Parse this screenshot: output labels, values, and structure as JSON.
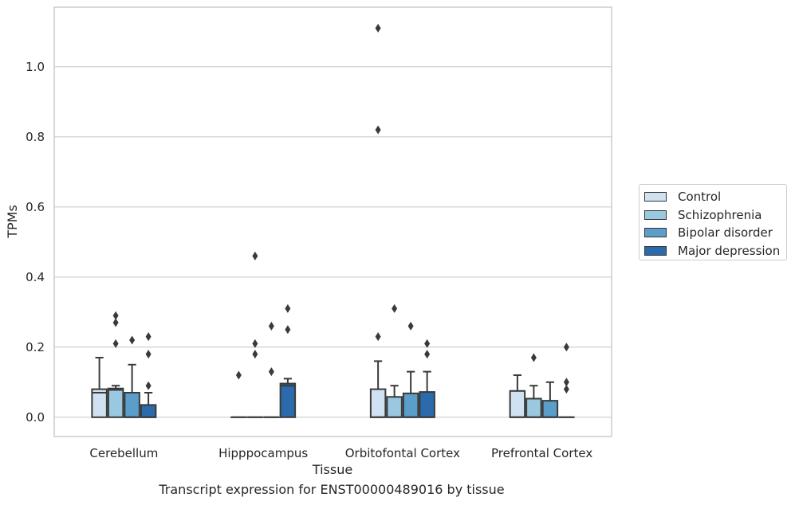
{
  "caption": "Transcript expression for ENST00000489016 by tissue",
  "chart_data": {
    "type": "box",
    "xlabel": "Tissue",
    "ylabel": "TPMs",
    "ylim": [
      -0.055,
      1.17
    ],
    "yticks": [
      0.0,
      0.2,
      0.4,
      0.6,
      0.8,
      1.0
    ],
    "ytick_labels": [
      "0.0",
      "0.2",
      "0.4",
      "0.6",
      "0.8",
      "1.0"
    ],
    "grid": "horizontal",
    "legend_position": "right",
    "categories": [
      "Cerebellum",
      "Hipppocampus",
      "Orbitofontal Cortex",
      "Prefrontal Cortex"
    ],
    "series": [
      {
        "name": "Control",
        "color": "#d0e1f2",
        "boxes": [
          {
            "whislo": 0.0,
            "q1": 0.0,
            "median": 0.07,
            "q3": 0.08,
            "whishi": 0.17,
            "fliers": []
          },
          {
            "whislo": 0.0,
            "q1": 0.0,
            "median": 0.0,
            "q3": 0.0,
            "whishi": 0.0,
            "fliers": [
              0.12
            ]
          },
          {
            "whislo": 0.0,
            "q1": 0.0,
            "median": 0.0,
            "q3": 0.08,
            "whishi": 0.16,
            "fliers": [
              0.23,
              0.82,
              1.11
            ]
          },
          {
            "whislo": 0.0,
            "q1": 0.0,
            "median": 0.0,
            "q3": 0.075,
            "whishi": 0.12,
            "fliers": []
          }
        ]
      },
      {
        "name": "Schizophrenia",
        "color": "#9ac8e0",
        "boxes": [
          {
            "whislo": 0.0,
            "q1": 0.0,
            "median": 0.078,
            "q3": 0.082,
            "whishi": 0.09,
            "fliers": [
              0.21,
              0.27,
              0.29
            ]
          },
          {
            "whislo": 0.0,
            "q1": 0.0,
            "median": 0.0,
            "q3": 0.0,
            "whishi": 0.0,
            "fliers": [
              0.18,
              0.21,
              0.46
            ]
          },
          {
            "whislo": 0.0,
            "q1": 0.0,
            "median": 0.0,
            "q3": 0.058,
            "whishi": 0.09,
            "fliers": [
              0.31
            ]
          },
          {
            "whislo": 0.0,
            "q1": 0.0,
            "median": 0.0,
            "q3": 0.053,
            "whishi": 0.09,
            "fliers": [
              0.17
            ]
          }
        ]
      },
      {
        "name": "Bipolar disorder",
        "color": "#5a9ec9",
        "boxes": [
          {
            "whislo": 0.0,
            "q1": 0.0,
            "median": 0.0,
            "q3": 0.07,
            "whishi": 0.15,
            "fliers": [
              0.22
            ]
          },
          {
            "whislo": 0.0,
            "q1": 0.0,
            "median": 0.0,
            "q3": 0.0,
            "whishi": 0.0,
            "fliers": [
              0.13,
              0.26
            ]
          },
          {
            "whislo": 0.0,
            "q1": 0.0,
            "median": 0.0,
            "q3": 0.068,
            "whishi": 0.13,
            "fliers": [
              0.26
            ]
          },
          {
            "whislo": 0.0,
            "q1": 0.0,
            "median": 0.0,
            "q3": 0.047,
            "whishi": 0.1,
            "fliers": []
          }
        ]
      },
      {
        "name": "Major depression",
        "color": "#2b6aab",
        "boxes": [
          {
            "whislo": 0.0,
            "q1": 0.0,
            "median": 0.0,
            "q3": 0.035,
            "whishi": 0.07,
            "fliers": [
              0.09,
              0.18,
              0.23
            ]
          },
          {
            "whislo": 0.0,
            "q1": 0.0,
            "median": 0.09,
            "q3": 0.096,
            "whishi": 0.11,
            "fliers": [
              0.25,
              0.31
            ]
          },
          {
            "whislo": 0.0,
            "q1": 0.0,
            "median": 0.0,
            "q3": 0.072,
            "whishi": 0.13,
            "fliers": [
              0.18,
              0.21
            ]
          },
          {
            "whislo": 0.0,
            "q1": 0.0,
            "median": 0.0,
            "q3": 0.0,
            "whishi": 0.0,
            "fliers": [
              0.08,
              0.1,
              0.2
            ]
          }
        ]
      }
    ]
  }
}
